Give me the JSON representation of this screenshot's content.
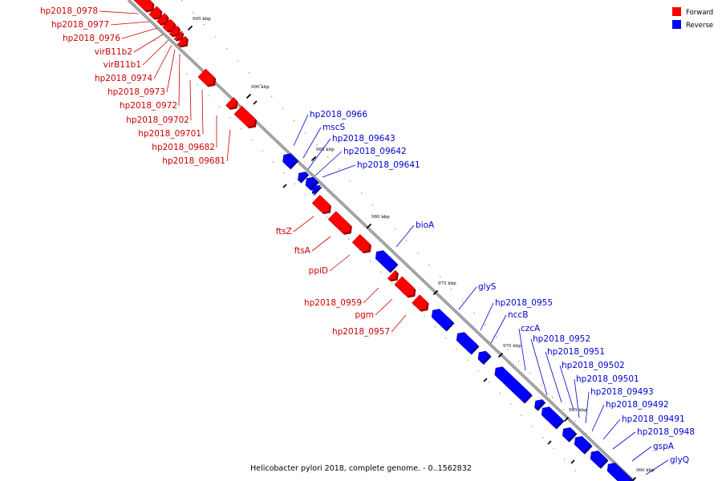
{
  "colors": {
    "forward": "#ff0000",
    "forward_dark": "#9e0000",
    "reverse": "#0000ff",
    "reverse_dark": "#00009e"
  },
  "legend": {
    "forward": "Forward",
    "reverse": "Reverse"
  },
  "caption": "Helicobacter pylori 2018, complete genome. - 0..1562832",
  "ticks": [
    "995 kbp",
    "990 kbp",
    "985 kbp",
    "980 kbp",
    "975 kbp",
    "970 kbp",
    "965 kbp",
    "960 kbp"
  ],
  "genes": [
    {
      "name": "hp2018_0978",
      "strand": "forward"
    },
    {
      "name": "hp2018_0977",
      "strand": "forward"
    },
    {
      "name": "hp2018_0976",
      "strand": "forward"
    },
    {
      "name": "virB11b2",
      "strand": "forward"
    },
    {
      "name": "virB11b1",
      "strand": "forward"
    },
    {
      "name": "hp2018_0974",
      "strand": "forward"
    },
    {
      "name": "hp2018_0973",
      "strand": "forward"
    },
    {
      "name": "hp2018_0972",
      "strand": "forward"
    },
    {
      "name": "hp2018_09702",
      "strand": "forward"
    },
    {
      "name": "hp2018_09701",
      "strand": "forward"
    },
    {
      "name": "hp2018_09682",
      "strand": "forward"
    },
    {
      "name": "hp2018_09681",
      "strand": "forward"
    },
    {
      "name": "hp2018_0966",
      "strand": "reverse"
    },
    {
      "name": "mscS",
      "strand": "reverse"
    },
    {
      "name": "hp2018_09643",
      "strand": "reverse"
    },
    {
      "name": "hp2018_09642",
      "strand": "reverse"
    },
    {
      "name": "hp2018_09641",
      "strand": "reverse"
    },
    {
      "name": "ftsZ",
      "strand": "forward"
    },
    {
      "name": "ftsA",
      "strand": "forward"
    },
    {
      "name": "ppiD",
      "strand": "forward"
    },
    {
      "name": "bioA",
      "strand": "reverse"
    },
    {
      "name": "hp2018_0959",
      "strand": "forward"
    },
    {
      "name": "pgm",
      "strand": "forward"
    },
    {
      "name": "hp2018_0957",
      "strand": "forward"
    },
    {
      "name": "glyS",
      "strand": "reverse"
    },
    {
      "name": "hp2018_0955",
      "strand": "reverse"
    },
    {
      "name": "nccB",
      "strand": "reverse"
    },
    {
      "name": "czcA",
      "strand": "reverse"
    },
    {
      "name": "hp2018_0952",
      "strand": "reverse"
    },
    {
      "name": "hp2018_0951",
      "strand": "reverse"
    },
    {
      "name": "hp2018_09502",
      "strand": "reverse"
    },
    {
      "name": "hp2018_09501",
      "strand": "reverse"
    },
    {
      "name": "hp2018_09493",
      "strand": "reverse"
    },
    {
      "name": "hp2018_09492",
      "strand": "reverse"
    },
    {
      "name": "hp2018_09491",
      "strand": "reverse"
    },
    {
      "name": "hp2018_0948",
      "strand": "reverse"
    },
    {
      "name": "gspA",
      "strand": "reverse"
    },
    {
      "name": "glyQ",
      "strand": "reverse"
    }
  ]
}
